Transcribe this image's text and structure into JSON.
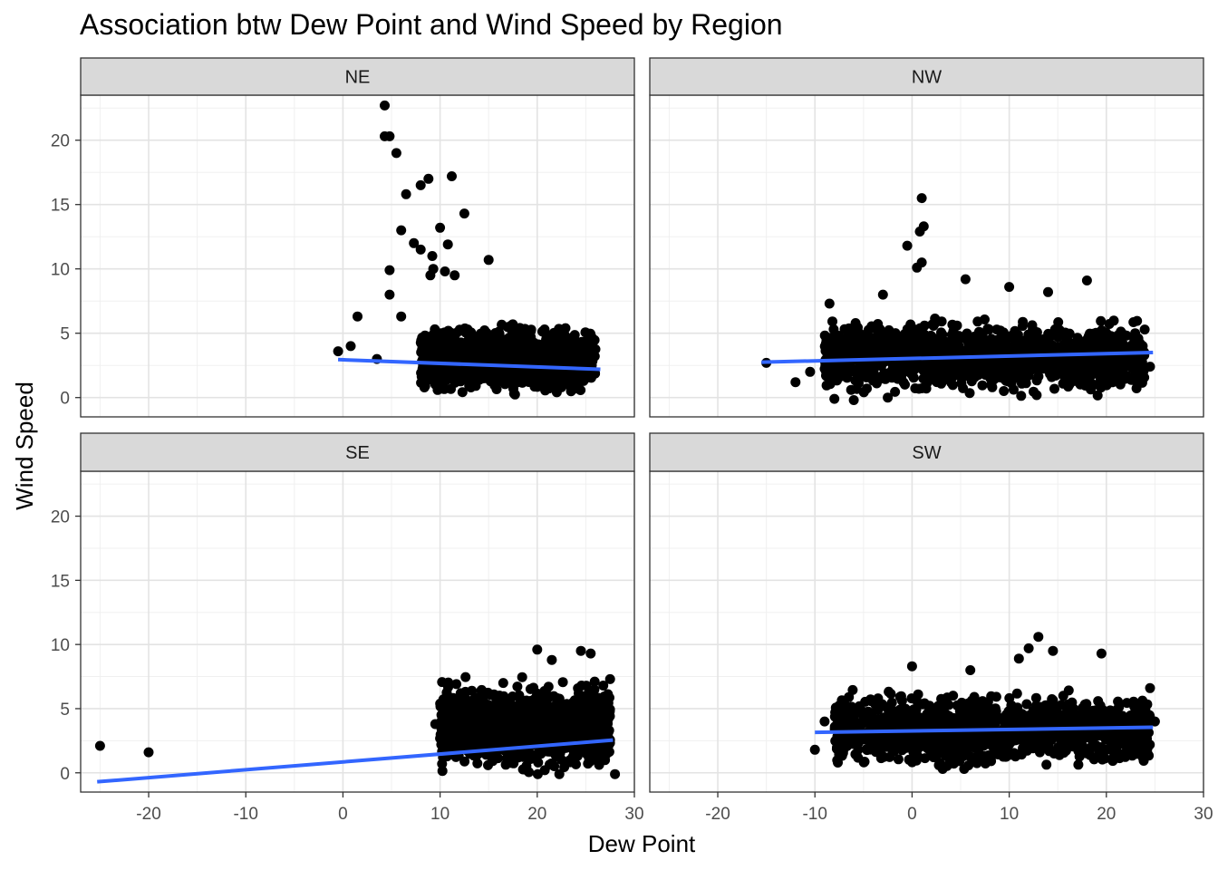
{
  "chart_data": {
    "type": "scatter",
    "title": "Association btw Dew Point and Wind Speed by Region",
    "xlabel": "Dew Point",
    "ylabel": "Wind Speed",
    "xlim": [
      -27,
      30
    ],
    "ylim": [
      -1.5,
      23.5
    ],
    "x_ticks": [
      -20,
      -10,
      0,
      10,
      20,
      30
    ],
    "y_ticks": [
      0,
      5,
      10,
      15,
      20
    ],
    "grid": true,
    "legend": "none",
    "facet_layout": "2x2",
    "point_color": "#000000",
    "fit_line_color": "#3366FF",
    "panels": [
      {
        "name": "NE",
        "fit_line": {
          "x": [
            -0.5,
            26.5
          ],
          "y": [
            2.95,
            2.2
          ]
        },
        "cluster": {
          "x_range": [
            8,
            26
          ],
          "y_range": [
            0.2,
            6.5
          ]
        },
        "points": [
          [
            4.3,
            22.7
          ],
          [
            4.3,
            20.3
          ],
          [
            4.8,
            20.3
          ],
          [
            5.5,
            19.0
          ],
          [
            8.0,
            16.5
          ],
          [
            8.8,
            17.0
          ],
          [
            6.5,
            15.8
          ],
          [
            11.2,
            17.2
          ],
          [
            12.5,
            14.3
          ],
          [
            10.0,
            13.2
          ],
          [
            6.0,
            13.0
          ],
          [
            7.3,
            12.0
          ],
          [
            8.0,
            11.5
          ],
          [
            9.2,
            11.0
          ],
          [
            10.8,
            11.9
          ],
          [
            15.0,
            10.7
          ],
          [
            9.3,
            10.0
          ],
          [
            10.5,
            9.8
          ],
          [
            4.8,
            9.9
          ],
          [
            4.8,
            8.0
          ],
          [
            6.0,
            6.3
          ],
          [
            1.5,
            6.3
          ],
          [
            0.8,
            4.0
          ],
          [
            -0.5,
            3.6
          ],
          [
            3.5,
            3.0
          ],
          [
            11.5,
            9.5
          ],
          [
            9.0,
            9.5
          ]
        ]
      },
      {
        "name": "NW",
        "fit_line": {
          "x": [
            -15.5,
            24.8
          ],
          "y": [
            2.75,
            3.5
          ]
        },
        "cluster": {
          "x_range": [
            -9,
            24
          ],
          "y_range": [
            0.1,
            7.0
          ]
        },
        "points": [
          [
            1.0,
            15.5
          ],
          [
            1.2,
            13.3
          ],
          [
            0.8,
            12.9
          ],
          [
            -0.5,
            11.8
          ],
          [
            1.0,
            10.5
          ],
          [
            0.5,
            10.1
          ],
          [
            -15.0,
            2.7
          ],
          [
            -12.0,
            1.2
          ],
          [
            -8.0,
            -0.1
          ],
          [
            -6.0,
            -0.2
          ],
          [
            -10.5,
            2.0
          ],
          [
            24.5,
            2.4
          ],
          [
            18.0,
            9.1
          ],
          [
            5.5,
            9.2
          ],
          [
            -3.0,
            8.0
          ],
          [
            -8.5,
            7.3
          ],
          [
            -2.5,
            0.0
          ],
          [
            10.0,
            8.6
          ],
          [
            14.0,
            8.2
          ]
        ]
      },
      {
        "name": "SE",
        "fit_line": {
          "x": [
            -25.3,
            27.8
          ],
          "y": [
            -0.7,
            2.55
          ]
        },
        "cluster": {
          "x_range": [
            10,
            27.5
          ],
          "y_range": [
            -0.1,
            8.0
          ]
        },
        "points": [
          [
            -25.0,
            2.1
          ],
          [
            -20.0,
            1.6
          ],
          [
            9.5,
            3.8
          ],
          [
            10.5,
            5.3
          ],
          [
            28.0,
            -0.1
          ],
          [
            20.0,
            9.6
          ],
          [
            24.5,
            9.5
          ],
          [
            25.5,
            9.3
          ],
          [
            16.5,
            7.0
          ],
          [
            21.5,
            8.8
          ],
          [
            27.5,
            7.3
          ],
          [
            11.0,
            1.5
          ]
        ]
      },
      {
        "name": "SW",
        "fit_line": {
          "x": [
            -10.0,
            24.8
          ],
          "y": [
            3.15,
            3.55
          ]
        },
        "cluster": {
          "x_range": [
            -8,
            24.5
          ],
          "y_range": [
            0.3,
            7.2
          ]
        },
        "points": [
          [
            -10.0,
            1.8
          ],
          [
            -9.0,
            4.0
          ],
          [
            13.0,
            10.6
          ],
          [
            12.0,
            9.7
          ],
          [
            14.5,
            9.5
          ],
          [
            19.5,
            9.3
          ],
          [
            11.0,
            8.9
          ],
          [
            0.0,
            8.3
          ],
          [
            -6.5,
            5.9
          ],
          [
            24.5,
            6.6
          ],
          [
            25.0,
            4.0
          ],
          [
            6.0,
            8.0
          ],
          [
            -3.5,
            5.8
          ]
        ]
      }
    ]
  }
}
